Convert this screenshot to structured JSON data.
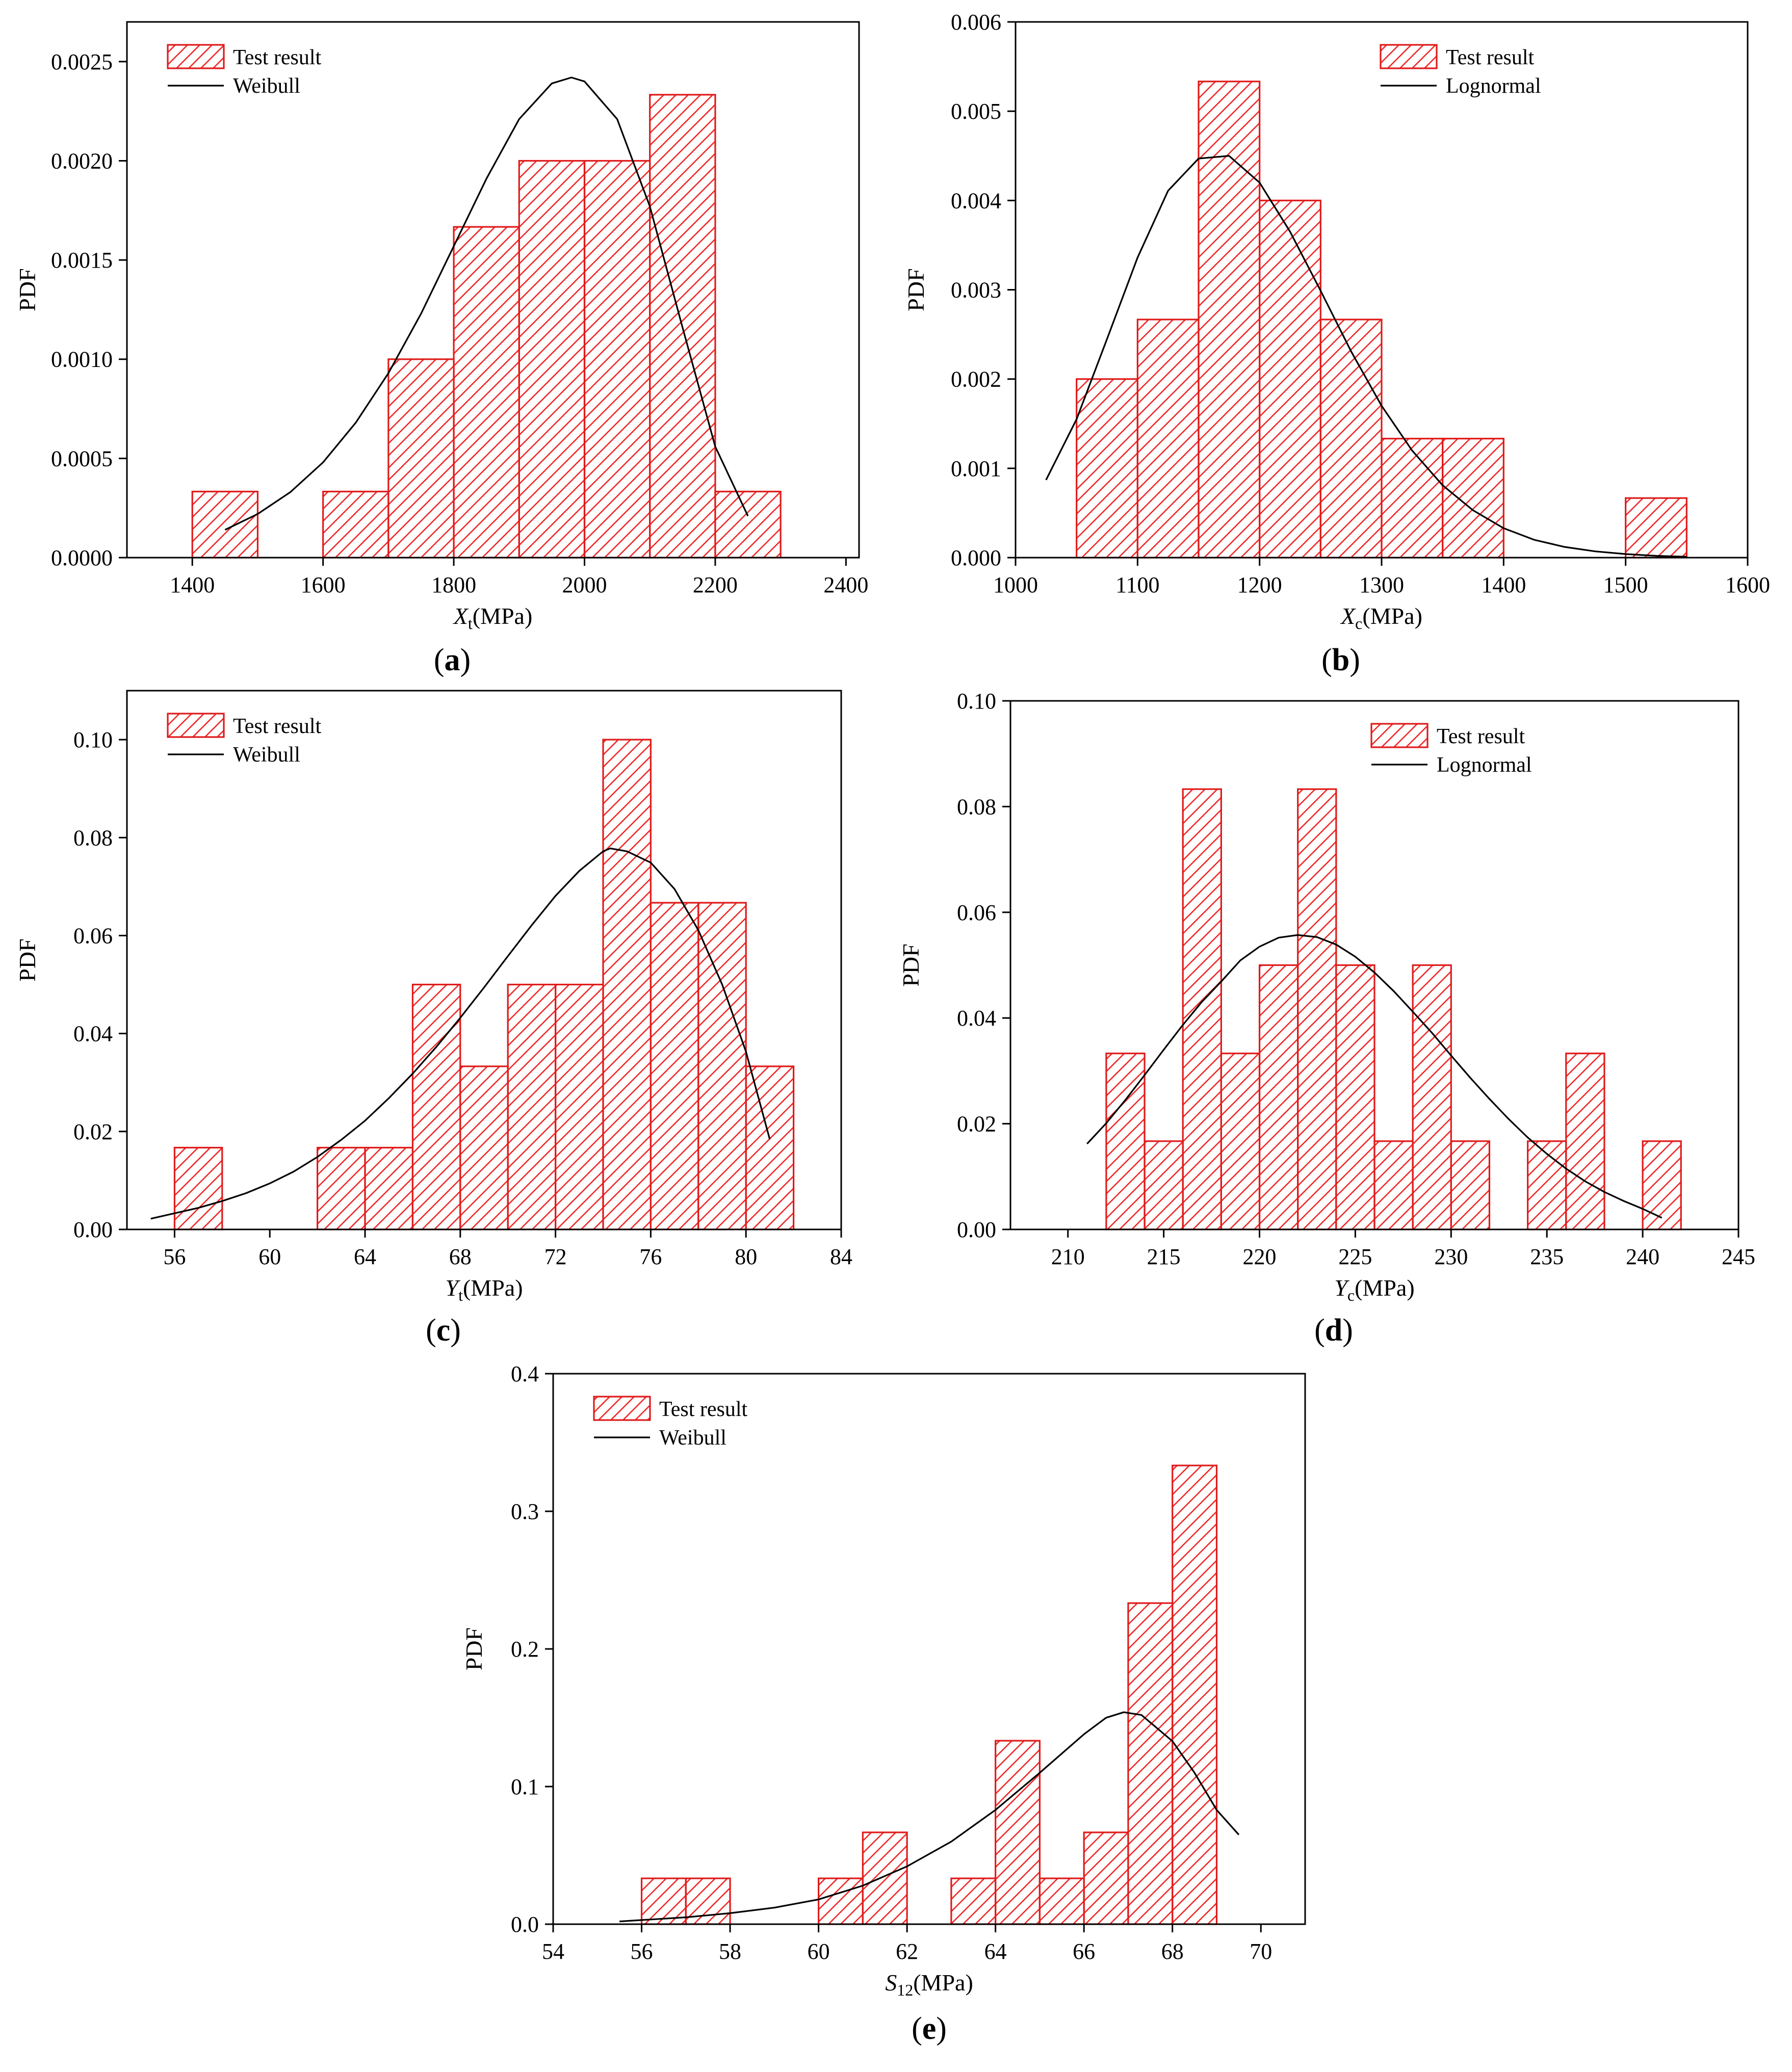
{
  "chart_data": [
    {
      "type": "bar",
      "panel_label": "a",
      "ylabel": "PDF",
      "xlabel": {
        "symbol": "X",
        "subscript": "t",
        "unit": "(MPa)"
      },
      "xlim": [
        1300,
        2420
      ],
      "ylim": [
        0,
        0.0027
      ],
      "xticks": [
        1400,
        1600,
        1800,
        2000,
        2200,
        2400
      ],
      "yticks": [
        0,
        0.0005,
        0.001,
        0.0015,
        0.002,
        0.0025
      ],
      "ytick_labels": [
        "0.0000",
        "0.0005",
        "0.0010",
        "0.0015",
        "0.0020",
        "0.0025"
      ],
      "legend": {
        "position": "top-left",
        "bar_label": "Test result",
        "line_label": "Weibull"
      },
      "bins": [
        {
          "x0": 1400,
          "x1": 1500,
          "value": 0.000333
        },
        {
          "x0": 1600,
          "x1": 1700,
          "value": 0.000333
        },
        {
          "x0": 1700,
          "x1": 1800,
          "value": 0.001
        },
        {
          "x0": 1800,
          "x1": 1900,
          "value": 0.001667
        },
        {
          "x0": 1900,
          "x1": 2000,
          "value": 0.002
        },
        {
          "x0": 2000,
          "x1": 2100,
          "value": 0.002
        },
        {
          "x0": 2100,
          "x1": 2200,
          "value": 0.002333
        },
        {
          "x0": 2200,
          "x1": 2300,
          "value": 0.000333
        }
      ],
      "fit": {
        "name": "Weibull",
        "x": [
          1450,
          1500,
          1550,
          1600,
          1650,
          1700,
          1750,
          1800,
          1850,
          1900,
          1950,
          1980,
          2000,
          2050,
          2100,
          2150,
          2200,
          2250
        ],
        "y": [
          0.00014,
          0.00022,
          0.00033,
          0.00048,
          0.00068,
          0.00093,
          0.00123,
          0.00157,
          0.00191,
          0.00221,
          0.00239,
          0.00242,
          0.0024,
          0.00221,
          0.00177,
          0.00116,
          0.00056,
          0.00021
        ]
      }
    },
    {
      "type": "bar",
      "panel_label": "b",
      "ylabel": "PDF",
      "xlabel": {
        "symbol": "X",
        "subscript": "c",
        "unit": "(MPa)"
      },
      "xlim": [
        1000,
        1600
      ],
      "ylim": [
        0,
        0.006
      ],
      "xticks": [
        1000,
        1100,
        1200,
        1300,
        1400,
        1500,
        1600
      ],
      "yticks": [
        0,
        0.001,
        0.002,
        0.003,
        0.004,
        0.005,
        0.006
      ],
      "ytick_labels": [
        "0.000",
        "0.001",
        "0.002",
        "0.003",
        "0.004",
        "0.005",
        "0.006"
      ],
      "legend": {
        "position": "top-right",
        "bar_label": "Test result",
        "line_label": "Lognormal"
      },
      "bins": [
        {
          "x0": 1050,
          "x1": 1100,
          "value": 0.002
        },
        {
          "x0": 1100,
          "x1": 1150,
          "value": 0.002667
        },
        {
          "x0": 1150,
          "x1": 1200,
          "value": 0.005333
        },
        {
          "x0": 1200,
          "x1": 1250,
          "value": 0.004
        },
        {
          "x0": 1250,
          "x1": 1300,
          "value": 0.002667
        },
        {
          "x0": 1300,
          "x1": 1350,
          "value": 0.001333
        },
        {
          "x0": 1350,
          "x1": 1400,
          "value": 0.001333
        },
        {
          "x0": 1500,
          "x1": 1550,
          "value": 0.000667
        }
      ],
      "fit": {
        "name": "Lognormal",
        "x": [
          1025,
          1050,
          1075,
          1100,
          1125,
          1150,
          1175,
          1200,
          1225,
          1250,
          1275,
          1300,
          1325,
          1350,
          1375,
          1400,
          1425,
          1450,
          1475,
          1500,
          1525,
          1550
        ],
        "y": [
          0.00087,
          0.00155,
          0.00245,
          0.00336,
          0.00411,
          0.00447,
          0.0045,
          0.0042,
          0.00365,
          0.00299,
          0.00231,
          0.0017,
          0.0012,
          0.00081,
          0.00053,
          0.00033,
          0.0002,
          0.00012,
          7e-05,
          4e-05,
          2e-05,
          1e-05
        ]
      }
    },
    {
      "type": "bar",
      "panel_label": "c",
      "ylabel": "PDF",
      "xlabel": {
        "symbol": "Y",
        "subscript": "t",
        "unit": "(MPa)"
      },
      "xlim": [
        54,
        84
      ],
      "ylim": [
        0,
        0.11
      ],
      "xticks": [
        56,
        60,
        64,
        68,
        72,
        76,
        80,
        84
      ],
      "yticks": [
        0,
        0.02,
        0.04,
        0.06,
        0.08,
        0.1
      ],
      "ytick_labels": [
        "0.00",
        "0.02",
        "0.04",
        "0.06",
        "0.08",
        "0.10"
      ],
      "legend": {
        "position": "top-left",
        "bar_label": "Test result",
        "line_label": "Weibull"
      },
      "bins": [
        {
          "x0": 56,
          "x1": 58,
          "value": 0.0167
        },
        {
          "x0": 62,
          "x1": 64,
          "value": 0.0167
        },
        {
          "x0": 64,
          "x1": 66,
          "value": 0.0167
        },
        {
          "x0": 66,
          "x1": 68,
          "value": 0.05
        },
        {
          "x0": 68,
          "x1": 70,
          "value": 0.0333
        },
        {
          "x0": 70,
          "x1": 72,
          "value": 0.05
        },
        {
          "x0": 72,
          "x1": 74,
          "value": 0.05
        },
        {
          "x0": 74,
          "x1": 76,
          "value": 0.1
        },
        {
          "x0": 76,
          "x1": 78,
          "value": 0.0667
        },
        {
          "x0": 78,
          "x1": 80,
          "value": 0.0667
        },
        {
          "x0": 80,
          "x1": 82,
          "value": 0.0333
        }
      ],
      "fit": {
        "name": "Weibull",
        "x": [
          55,
          56,
          57,
          58,
          59,
          60,
          61,
          62,
          63,
          64,
          65,
          66,
          67,
          68,
          69,
          70,
          71,
          72,
          73,
          74,
          74.3,
          75,
          76,
          77,
          78,
          79,
          80,
          81
        ],
        "y": [
          0.0022,
          0.0033,
          0.0044,
          0.0058,
          0.0074,
          0.0094,
          0.0118,
          0.0148,
          0.0183,
          0.0222,
          0.0268,
          0.0318,
          0.0373,
          0.0432,
          0.0494,
          0.0558,
          0.0621,
          0.0681,
          0.0732,
          0.0772,
          0.0778,
          0.0772,
          0.0749,
          0.0695,
          0.0611,
          0.05,
          0.0363,
          0.0184
        ]
      }
    },
    {
      "type": "bar",
      "panel_label": "d",
      "ylabel": "PDF",
      "xlabel": {
        "symbol": "Y",
        "subscript": "c",
        "unit": "(MPa)"
      },
      "xlim": [
        207,
        245
      ],
      "ylim": [
        0,
        0.1
      ],
      "xticks": [
        210,
        215,
        220,
        225,
        230,
        235,
        240,
        245
      ],
      "yticks": [
        0,
        0.02,
        0.04,
        0.06,
        0.08,
        0.1
      ],
      "ytick_labels": [
        "0.00",
        "0.02",
        "0.04",
        "0.06",
        "0.08",
        "0.10"
      ],
      "legend": {
        "position": "top-right",
        "bar_label": "Test result",
        "line_label": "Lognormal"
      },
      "bins": [
        {
          "x0": 212,
          "x1": 214,
          "value": 0.0333
        },
        {
          "x0": 214,
          "x1": 216,
          "value": 0.0167
        },
        {
          "x0": 216,
          "x1": 218,
          "value": 0.0833
        },
        {
          "x0": 218,
          "x1": 220,
          "value": 0.0333
        },
        {
          "x0": 220,
          "x1": 222,
          "value": 0.05
        },
        {
          "x0": 222,
          "x1": 224,
          "value": 0.0833
        },
        {
          "x0": 224,
          "x1": 226,
          "value": 0.05
        },
        {
          "x0": 226,
          "x1": 228,
          "value": 0.0167
        },
        {
          "x0": 228,
          "x1": 230,
          "value": 0.05
        },
        {
          "x0": 230,
          "x1": 232,
          "value": 0.0167
        },
        {
          "x0": 234,
          "x1": 236,
          "value": 0.0167
        },
        {
          "x0": 236,
          "x1": 238,
          "value": 0.0333
        },
        {
          "x0": 240,
          "x1": 242,
          "value": 0.0167
        }
      ],
      "fit": {
        "name": "Lognormal",
        "x": [
          211,
          212,
          213,
          214,
          215,
          216,
          217,
          218,
          219,
          220,
          221,
          222,
          223,
          224,
          225,
          226,
          227,
          228,
          229,
          230,
          231,
          232,
          233,
          234,
          235,
          236,
          237,
          238,
          239,
          240,
          241
        ],
        "y": [
          0.0162,
          0.0201,
          0.0245,
          0.0292,
          0.034,
          0.0387,
          0.0431,
          0.0469,
          0.0509,
          0.0535,
          0.0552,
          0.0557,
          0.0553,
          0.0539,
          0.0516,
          0.0486,
          0.0451,
          0.0412,
          0.0372,
          0.0329,
          0.0287,
          0.0247,
          0.0209,
          0.0174,
          0.0143,
          0.0115,
          0.0091,
          0.0071,
          0.0054,
          0.0039,
          0.0022
        ]
      }
    },
    {
      "type": "bar",
      "panel_label": "e",
      "ylabel": "PDF",
      "xlabel": {
        "symbol": "S",
        "subscript": "12",
        "unit": "(MPa)"
      },
      "xlim": [
        54,
        71
      ],
      "ylim": [
        0,
        0.4
      ],
      "xticks": [
        54,
        56,
        58,
        60,
        62,
        64,
        66,
        68,
        70
      ],
      "yticks": [
        0,
        0.1,
        0.2,
        0.3,
        0.4
      ],
      "ytick_labels": [
        "0.0",
        "0.1",
        "0.2",
        "0.3",
        "0.4"
      ],
      "legend": {
        "position": "top-left",
        "bar_label": "Test result",
        "line_label": "Weibull"
      },
      "bins": [
        {
          "x0": 56,
          "x1": 57,
          "value": 0.0333
        },
        {
          "x0": 57,
          "x1": 58,
          "value": 0.0333
        },
        {
          "x0": 60,
          "x1": 61,
          "value": 0.0333
        },
        {
          "x0": 61,
          "x1": 62,
          "value": 0.0667
        },
        {
          "x0": 63,
          "x1": 64,
          "value": 0.0333
        },
        {
          "x0": 64,
          "x1": 65,
          "value": 0.1333
        },
        {
          "x0": 65,
          "x1": 66,
          "value": 0.0333
        },
        {
          "x0": 66,
          "x1": 67,
          "value": 0.0667
        },
        {
          "x0": 67,
          "x1": 68,
          "value": 0.2333
        },
        {
          "x0": 68,
          "x1": 69,
          "value": 0.3333
        }
      ],
      "fit": {
        "name": "Weibull",
        "x": [
          55.5,
          56,
          57,
          58,
          59,
          60,
          61,
          62,
          63,
          64,
          65,
          66,
          66.5,
          66.9,
          67.3,
          68,
          68.5,
          69,
          69.5
        ],
        "y": [
          0.002,
          0.003,
          0.005,
          0.008,
          0.012,
          0.018,
          0.028,
          0.042,
          0.06,
          0.083,
          0.11,
          0.138,
          0.15,
          0.154,
          0.152,
          0.133,
          0.11,
          0.083,
          0.065
        ]
      }
    }
  ]
}
